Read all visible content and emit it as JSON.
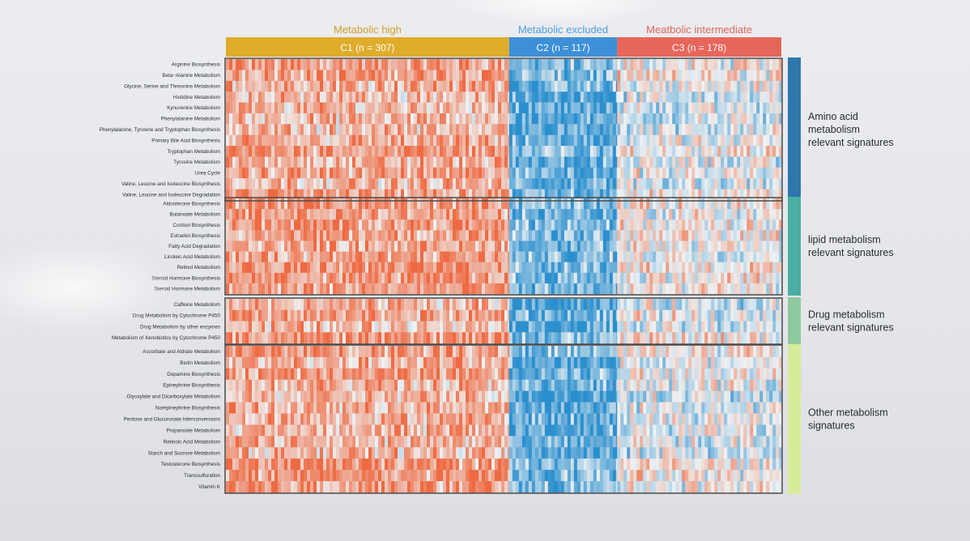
{
  "chart_data": {
    "type": "heatmap",
    "clusters": [
      {
        "label": "Metabolic high",
        "bar_text": "C1 (n = 307)",
        "color": "#e0ac2c",
        "label_color": "#cfa128",
        "n": 307
      },
      {
        "label": "Metabolic excluded",
        "bar_text": "C2 (n = 117)",
        "color": "#3d8fd8",
        "label_color": "#4d9ee6",
        "n": 117
      },
      {
        "label": "Meatbolic intermediate",
        "bar_text": "C3 (n = 178)",
        "color": "#e7665b",
        "label_color": "#e0655c",
        "n": 178
      }
    ],
    "groups": [
      {
        "label_lines": [
          "Amino acid",
          "metabolism",
          "relevant signatures"
        ],
        "color": "#2e77ad",
        "rows": [
          "Arginine Biosynthesis",
          "Beta−Alanine Metabolism",
          "Glycine, Serine and Threonine Metabolism",
          "Histidine Metabolism",
          "Kynurenine Metabolism",
          "Phenylalanine Metabolism",
          "Phenylalanine, Tyrosine and Tryptophan Biosynthesis",
          "Primary Bile Acid Biosynthesis",
          "Tryptophan Metabolism",
          "Tyrosine Metabolism",
          "Urea Cycle",
          "Valine, Leucine and Isoleucine Biosynthesis",
          "Valine, Leucine and Isoleucine Degradation"
        ]
      },
      {
        "label_lines": [
          "lipid metabolism",
          "relevant signatures"
        ],
        "color": "#4aaea5",
        "rows": [
          "Aldosterone Biosynthesis",
          "Butanoate Metabolism",
          "Cortisol Biosynthesis",
          "Estradiol Biosynthesis",
          "Fatty Acid Degradation",
          "Linoleic Acid Metabolism",
          "Retinol Metabolism",
          "Steroid Hormone Biosynthesis",
          "Steroid Hormone Metabolism"
        ]
      },
      {
        "label_lines": [
          "Drug metabolism",
          "relevant signatures"
        ],
        "color": "#8fc99f",
        "rows": [
          "Caffeine Metabolism",
          "Drug Metabolism by Cytochrome P450",
          "Drug Metabolism by other enzymes",
          "Metabolism of Xenobiotics by Cytochrome P450"
        ]
      },
      {
        "label_lines": [
          "Other metabolism",
          "signatures"
        ],
        "color": "#d7ec9a",
        "rows": [
          "Ascorbate and Aldrate Metabolism",
          "Biotin Metabolism",
          "Dopamine Biosynthesis",
          "Epinephrine Biosynthesis",
          "Glyoxylate and Dicarboxylate Metabolism",
          "Norepinephrine Biosynthesis",
          "Pentose and Glucuronate Interconversions",
          "Propanoate Metabolism",
          "Retinoic Acid Metabolism",
          "Starch and Sucrose Metabolism",
          "Testosterone Biosynthesis",
          "Transsulfuration",
          "Vitamin K"
        ]
      }
    ],
    "values_note": "",
    "color_scale": {
      "low": "#2b8fce",
      "mid": "#eef1f2",
      "high": "#ee6a42"
    },
    "cluster_mean_level": {
      "C1": 0.55,
      "C2": -0.65,
      "C3": 0.0
    }
  }
}
